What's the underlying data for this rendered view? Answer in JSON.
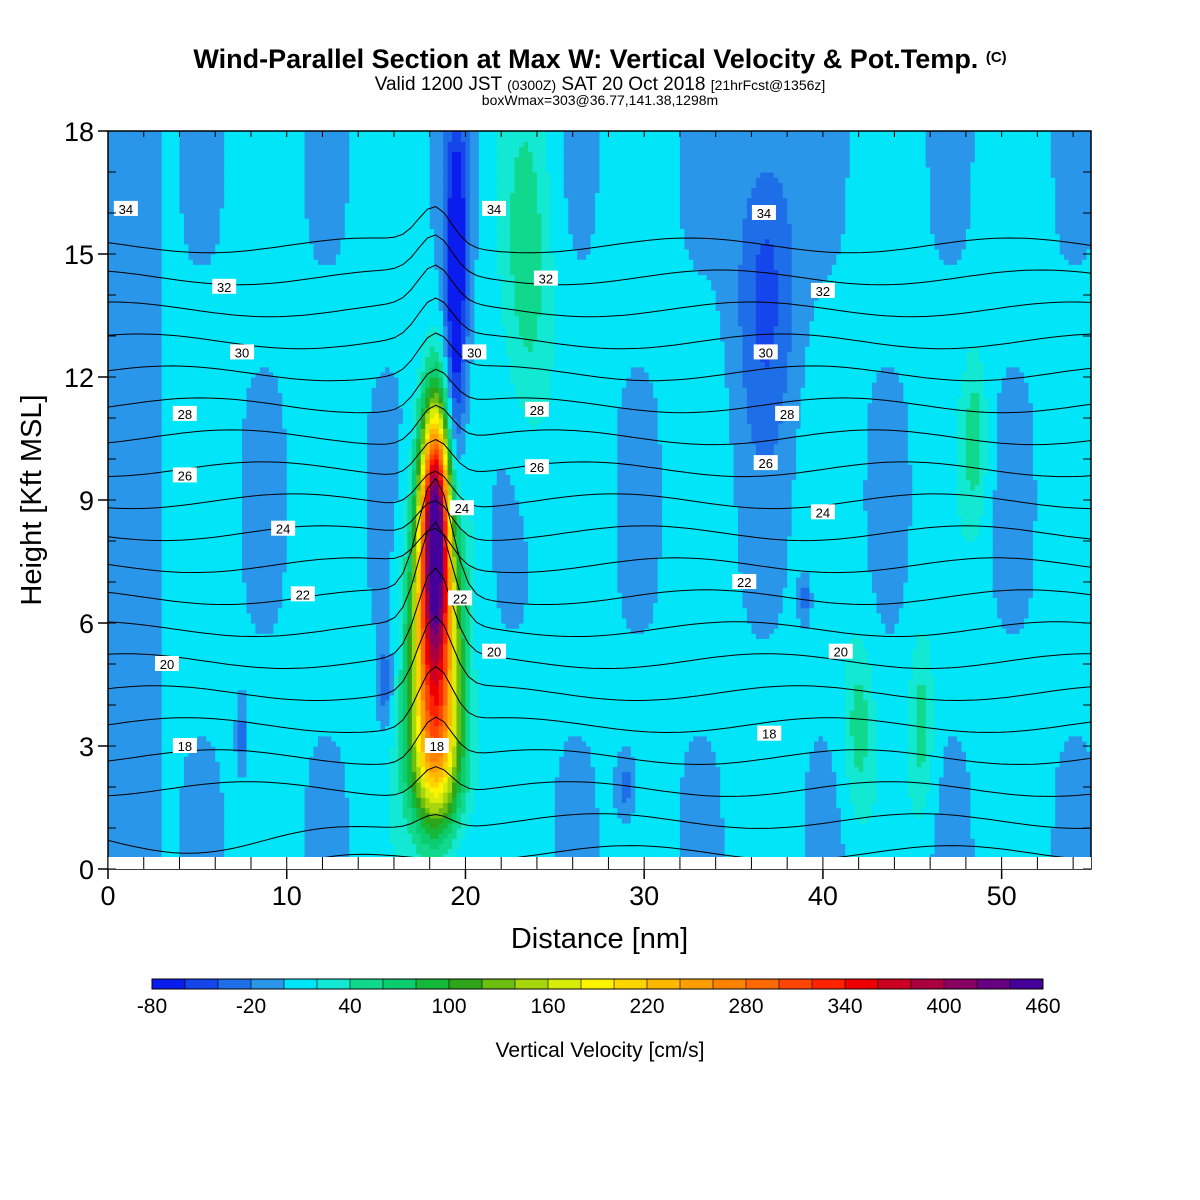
{
  "title": {
    "line1_main": "Wind-Parallel Section at Max W: Vertical Velocity & Pot.Temp.",
    "line1_mark": "(C)",
    "line2_a": "Valid 1200 JST",
    "line2_b": "(0300Z)",
    "line2_c": "SAT 20 Oct 2018",
    "line2_d": "[21hrFcst@1356z]",
    "line3": "boxWmax=303@36.77,141.38,1298m"
  },
  "chart_data": {
    "type": "heatmap",
    "xlabel": "Distance [nm]",
    "ylabel": "Height [Kft MSL]",
    "xlim": [
      0,
      55
    ],
    "ylim": [
      0,
      18
    ],
    "x_ticks": [
      0,
      10,
      20,
      30,
      40,
      50
    ],
    "y_ticks": [
      0,
      3,
      6,
      9,
      12,
      15,
      18
    ],
    "colorbar": {
      "title": "Vertical Velocity [cm/s]",
      "levels": [
        -80,
        -60,
        -40,
        -20,
        0,
        20,
        40,
        60,
        80,
        100,
        120,
        140,
        160,
        180,
        200,
        220,
        240,
        260,
        280,
        300,
        320,
        340,
        360,
        380,
        400,
        420,
        440,
        460
      ],
      "tick_labels": [
        -80,
        -20,
        40,
        100,
        160,
        220,
        280,
        340,
        400,
        460
      ],
      "colors": [
        "#0a1cee",
        "#1446ec",
        "#1e6ee8",
        "#2a96ea",
        "#00e6f8",
        "#12e8d2",
        "#10d88c",
        "#0ccc70",
        "#16b83a",
        "#2ea418",
        "#6cbe10",
        "#a8d60c",
        "#d8ec0a",
        "#fef400",
        "#fed400",
        "#feb800",
        "#fe9e00",
        "#fe8200",
        "#fe6800",
        "#fe4600",
        "#fe2200",
        "#ee0000",
        "#cc0020",
        "#aa0040",
        "#880060",
        "#660080",
        "#440099"
      ]
    },
    "velocity_features": [
      {
        "kind": "updraft",
        "x": 18.3,
        "y": 5.6,
        "sx": 0.9,
        "sy": 2.3,
        "w": 330
      },
      {
        "kind": "updraft",
        "x": 18.3,
        "y": 8.8,
        "sx": 0.55,
        "sy": 1.8,
        "w": 340
      },
      {
        "kind": "updraft",
        "x": 18.4,
        "y": 2.6,
        "sx": 1.1,
        "sy": 1.3,
        "w": 120
      },
      {
        "kind": "downdraft",
        "x": 19.4,
        "y": 12.5,
        "sx": 0.4,
        "sy": 3.4,
        "w": -70
      },
      {
        "kind": "downdraft",
        "x": 19.6,
        "y": 15.5,
        "sx": 0.45,
        "sy": 2.2,
        "w": -50
      },
      {
        "kind": "downdraft",
        "x": 36.8,
        "y": 14.5,
        "sx": 1.2,
        "sy": 2.8,
        "w": -55
      },
      {
        "kind": "downdraft",
        "x": 29.0,
        "y": 2.0,
        "sx": 0.4,
        "sy": 0.6,
        "w": -40
      },
      {
        "kind": "downdraft",
        "x": 15.5,
        "y": 4.5,
        "sx": 0.3,
        "sy": 0.8,
        "w": -40
      },
      {
        "kind": "downdraft",
        "x": 39.0,
        "y": 6.6,
        "sx": 0.25,
        "sy": 0.4,
        "w": -40
      },
      {
        "kind": "downdraft",
        "x": 7.5,
        "y": 3.2,
        "sx": 0.2,
        "sy": 0.6,
        "w": -40
      },
      {
        "kind": "updraft",
        "x": 23.5,
        "y": 14.5,
        "sx": 1.0,
        "sy": 3.0,
        "w": 45
      },
      {
        "kind": "updraft",
        "x": 42.0,
        "y": 3.5,
        "sx": 0.6,
        "sy": 1.5,
        "w": 45
      },
      {
        "kind": "updraft",
        "x": 45.5,
        "y": 3.5,
        "sx": 0.5,
        "sy": 1.5,
        "w": 45
      },
      {
        "kind": "updraft",
        "x": 48.5,
        "y": 10.5,
        "sx": 0.5,
        "sy": 1.5,
        "w": 45
      }
    ],
    "theta_contours": {
      "levels": [
        17,
        18,
        19,
        20,
        21,
        22,
        23,
        24,
        25,
        26,
        27,
        28,
        29,
        30,
        31,
        32,
        33,
        34,
        35,
        36
      ],
      "labeled": [
        18,
        20,
        22,
        24,
        26,
        28,
        30,
        32,
        34
      ],
      "label_points": [
        {
          "v": 34,
          "x": 1.0,
          "y": 16.1
        },
        {
          "v": 34,
          "x": 21.6,
          "y": 16.1
        },
        {
          "v": 34,
          "x": 36.7,
          "y": 16.0
        },
        {
          "v": 32,
          "x": 6.5,
          "y": 14.2
        },
        {
          "v": 32,
          "x": 24.5,
          "y": 14.4
        },
        {
          "v": 32,
          "x": 40.0,
          "y": 14.1
        },
        {
          "v": 30,
          "x": 7.5,
          "y": 12.6
        },
        {
          "v": 30,
          "x": 20.5,
          "y": 12.6
        },
        {
          "v": 30,
          "x": 36.8,
          "y": 12.6
        },
        {
          "v": 28,
          "x": 4.3,
          "y": 11.1
        },
        {
          "v": 28,
          "x": 24.0,
          "y": 11.2
        },
        {
          "v": 28,
          "x": 38.0,
          "y": 11.1
        },
        {
          "v": 26,
          "x": 4.3,
          "y": 9.6
        },
        {
          "v": 26,
          "x": 24.0,
          "y": 9.8
        },
        {
          "v": 26,
          "x": 36.8,
          "y": 9.9
        },
        {
          "v": 24,
          "x": 9.8,
          "y": 8.3
        },
        {
          "v": 24,
          "x": 19.8,
          "y": 8.8
        },
        {
          "v": 24,
          "x": 40.0,
          "y": 8.7
        },
        {
          "v": 22,
          "x": 10.9,
          "y": 6.7
        },
        {
          "v": 22,
          "x": 19.7,
          "y": 6.6
        },
        {
          "v": 22,
          "x": 35.6,
          "y": 7.0
        },
        {
          "v": 20,
          "x": 3.3,
          "y": 5.0
        },
        {
          "v": 20,
          "x": 21.6,
          "y": 5.3
        },
        {
          "v": 20,
          "x": 41.0,
          "y": 5.3
        },
        {
          "v": 18,
          "x": 4.3,
          "y": 3.0
        },
        {
          "v": 18,
          "x": 18.4,
          "y": 3.0
        },
        {
          "v": 18,
          "x": 37.0,
          "y": 3.3
        }
      ]
    }
  }
}
